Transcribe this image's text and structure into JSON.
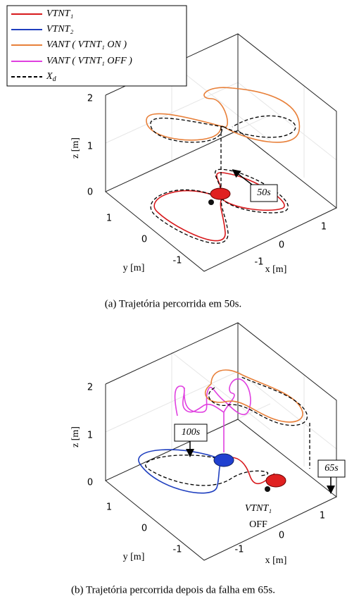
{
  "legend": [
    {
      "label": "VTNT₁"
    },
    {
      "label": "VTNT₂"
    },
    {
      "label": "VANT ( VTNT₁ ON )"
    },
    {
      "label": "VANT ( VTNT₁ OFF )"
    },
    {
      "label": "X",
      "sub": "d"
    }
  ],
  "panels": [
    {
      "z_label": "z [m]",
      "y_label": "y [m]",
      "x_label": "x [m]",
      "z_ticks": [
        "2",
        "1",
        "0"
      ],
      "y_ticks": [
        "1",
        "0",
        "-1"
      ],
      "x_ticks": [
        "-1",
        "0",
        "1"
      ],
      "annotations": [
        "50s"
      ],
      "caption": "(a) Trajetória percorrida em 50s."
    },
    {
      "z_label": "z [m]",
      "y_label": "y [m]",
      "x_label": "x [m]",
      "z_ticks": [
        "2",
        "1",
        "0"
      ],
      "y_ticks": [
        "1",
        "0",
        "-1"
      ],
      "x_ticks": [
        "-1",
        "0",
        "1"
      ],
      "annotations": [
        "100s",
        "65s",
        "VTNT₁",
        "OFF"
      ],
      "caption": "(b) Trajetória percorrida depois da falha em 65s."
    }
  ]
}
